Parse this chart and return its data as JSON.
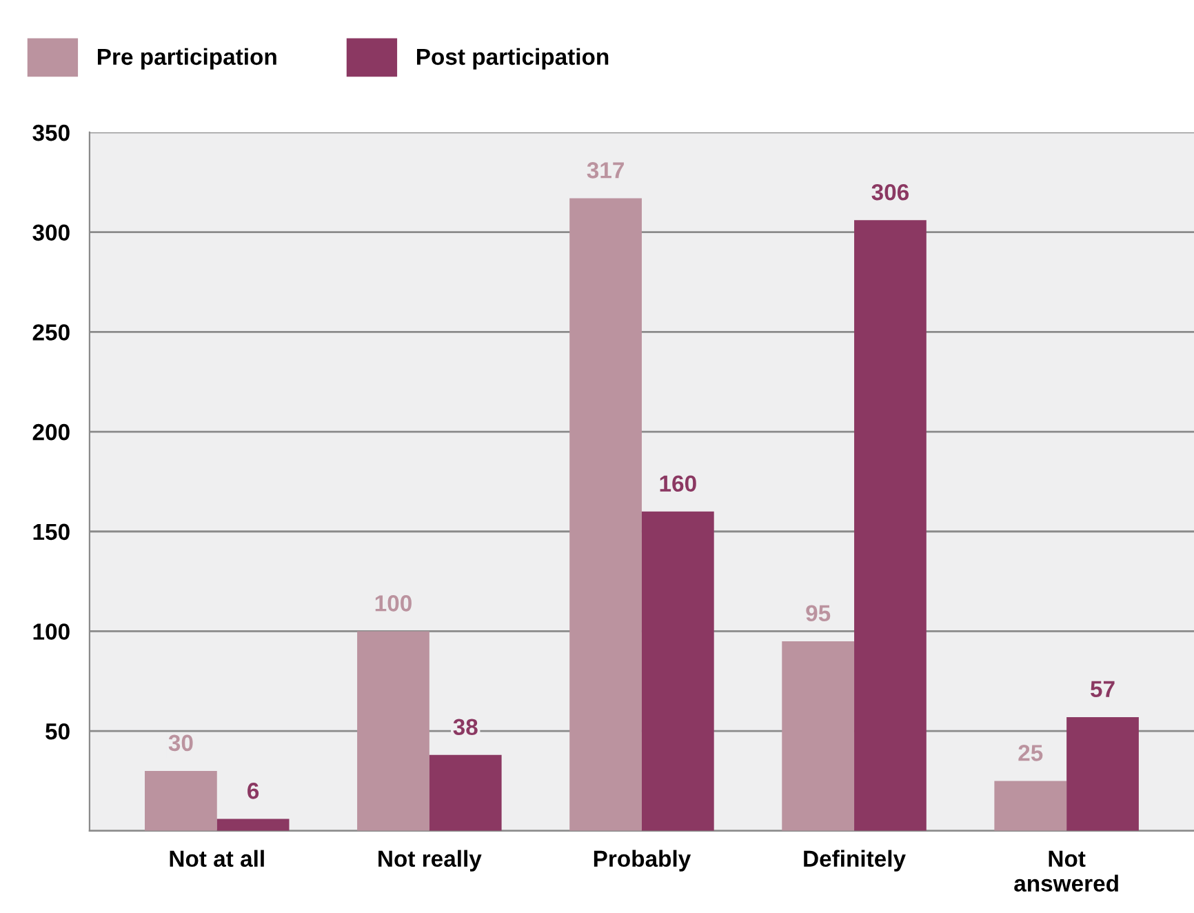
{
  "chart_data": {
    "type": "bar",
    "categories": [
      "Not at all",
      "Not really",
      "Probably",
      "Definitely",
      "Not\nanswered"
    ],
    "series": [
      {
        "name": "Pre participation",
        "color": "#bb939f",
        "values": [
          30,
          100,
          317,
          95,
          25
        ]
      },
      {
        "name": "Post participation",
        "color": "#8b3862",
        "values": [
          6,
          38,
          160,
          306,
          57
        ]
      }
    ],
    "ylim": [
      0,
      350
    ],
    "yticks": [
      {
        "value": 0,
        "label": null
      },
      50,
      100,
      150,
      200,
      250,
      300,
      350
    ],
    "grid": "y",
    "legend": "top left",
    "data_labels": true
  }
}
